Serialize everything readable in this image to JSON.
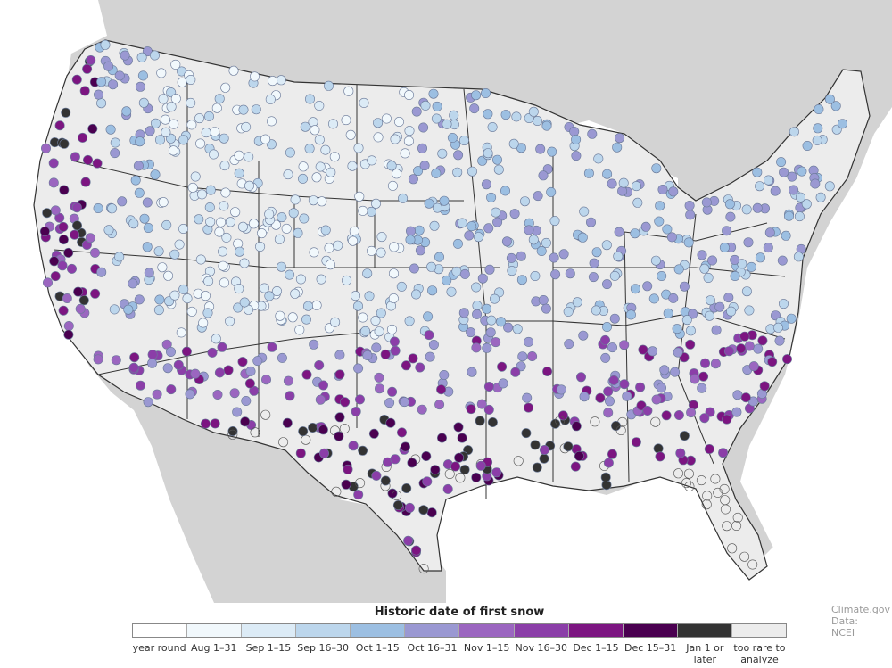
{
  "map": {
    "legend_title": "Historic date of first snow",
    "credit_source": "Climate.gov",
    "credit_data": "Data: NCEI",
    "colors": {
      "ocean": "#ffffff",
      "foreign_land": "#d3d3d3",
      "us_land": "#ececec",
      "borders": "#333333"
    },
    "legend": [
      {
        "label": "year round",
        "color": "#ffffff"
      },
      {
        "label": "Aug 1–31",
        "color": "#f1f8fc"
      },
      {
        "label": "Sep 1–15",
        "color": "#dcebf6"
      },
      {
        "label": "Sep 16–30",
        "color": "#bcd6ec"
      },
      {
        "label": "Oct 1–15",
        "color": "#9cbfe2"
      },
      {
        "label": "Oct 16–31",
        "color": "#9a98d2"
      },
      {
        "label": "Nov 1–15",
        "color": "#9b66c0"
      },
      {
        "label": "Nov 16–30",
        "color": "#8b3ea8"
      },
      {
        "label": "Dec 1–15",
        "color": "#7c1581"
      },
      {
        "label": "Dec 15–31",
        "color": "#4a0050"
      },
      {
        "label": "Jan 1 or later",
        "color": "#333333"
      },
      {
        "label": "too rare to analyze",
        "color": "#ececec"
      }
    ]
  }
}
